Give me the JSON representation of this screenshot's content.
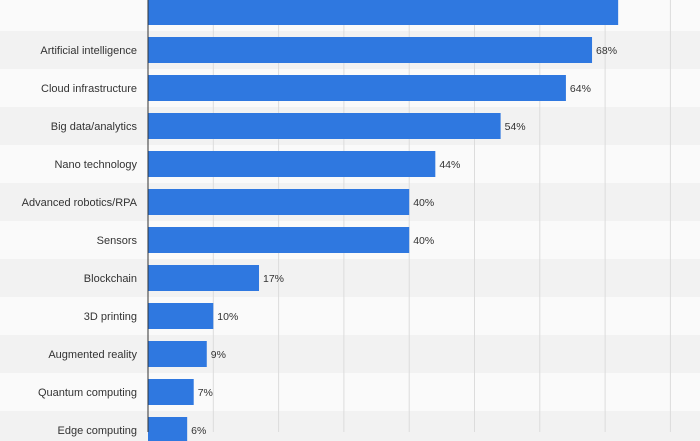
{
  "chart_data": {
    "type": "bar",
    "orientation": "horizontal",
    "title": "",
    "xlabel": "",
    "ylabel": "",
    "categories": [
      "",
      "Artificial intelligence",
      "Cloud infrastructure",
      "Big data/analytics",
      "Nano technology",
      "Advanced robotics/RPA",
      "Sensors",
      "Blockchain",
      "3D printing",
      "Augmented reality",
      "Quantum computing",
      "Edge computing"
    ],
    "values": [
      72,
      68,
      64,
      54,
      44,
      40,
      40,
      17,
      10,
      9,
      7,
      6
    ],
    "value_labels": [
      "",
      "68%",
      "64%",
      "54%",
      "44%",
      "40%",
      "40%",
      "17%",
      "10%",
      "9%",
      "7%",
      "6%"
    ],
    "xlim": [
      0,
      80
    ],
    "grid": true,
    "legend": "none",
    "colors": {
      "bar": "#2f78e0",
      "row_band": "#f2f2f2",
      "gridline": "#dcdcdc",
      "axis": "#333333",
      "text": "#333333"
    }
  }
}
